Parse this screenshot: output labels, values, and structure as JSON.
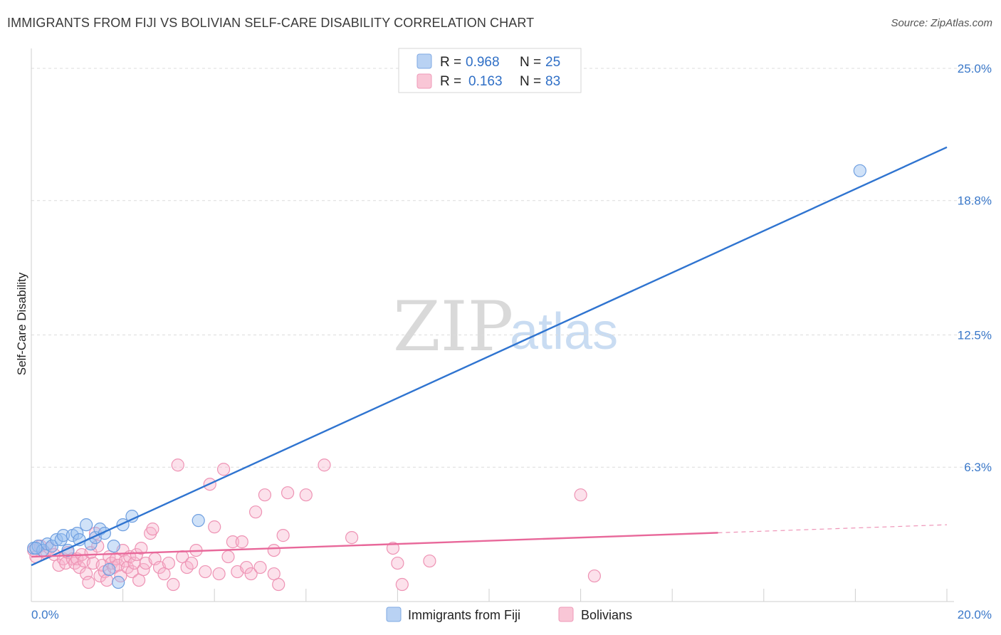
{
  "title": "IMMIGRANTS FROM FIJI VS BOLIVIAN SELF-CARE DISABILITY CORRELATION CHART",
  "source": "Source: ZipAtlas.com",
  "watermark": {
    "zip": "ZIP",
    "atlas": "atlas"
  },
  "colors": {
    "blue": "#6fa3e6",
    "blue_line": "#2f74d0",
    "pink": "#f08fb0",
    "pink_line": "#e8689a",
    "tick": "#3a78c9"
  },
  "legend": {
    "r_label": "R =",
    "n_label": "N =",
    "rows": [
      {
        "r": "0.968",
        "n": "25",
        "series": "fiji"
      },
      {
        "r": "0.163",
        "n": "83",
        "series": "bolivians"
      }
    ]
  },
  "chart_data": {
    "type": "scatter",
    "title": "IMMIGRANTS FROM FIJI VS BOLIVIAN SELF-CARE DISABILITY CORRELATION CHART",
    "xlabel": "",
    "ylabel": "Self-Care Disability",
    "xlim": [
      0,
      20
    ],
    "ylim": [
      0,
      25.6
    ],
    "x_tick_labels": [
      "0.0%",
      "20.0%"
    ],
    "x_ticks": [
      0,
      20
    ],
    "y_tick_labels": [
      "6.3%",
      "12.5%",
      "18.8%",
      "25.0%"
    ],
    "y_ticks": [
      6.3,
      12.5,
      18.8,
      25.0
    ],
    "grid": true,
    "series": [
      {
        "name": "Immigrants from Fiji",
        "key": "fiji",
        "trend": {
          "x": [
            0,
            20
          ],
          "y": [
            1.7,
            21.3
          ],
          "dashed_from": null
        },
        "points": [
          [
            0.05,
            2.5
          ],
          [
            0.15,
            2.6
          ],
          [
            0.25,
            2.4
          ],
          [
            0.35,
            2.7
          ],
          [
            0.45,
            2.6
          ],
          [
            0.55,
            2.9
          ],
          [
            0.65,
            2.9
          ],
          [
            0.7,
            3.1
          ],
          [
            0.8,
            2.4
          ],
          [
            0.9,
            3.1
          ],
          [
            1.0,
            3.2
          ],
          [
            1.05,
            2.9
          ],
          [
            1.2,
            3.6
          ],
          [
            1.3,
            2.7
          ],
          [
            1.4,
            3.0
          ],
          [
            1.5,
            3.4
          ],
          [
            1.6,
            3.2
          ],
          [
            1.7,
            1.5
          ],
          [
            1.8,
            2.6
          ],
          [
            1.9,
            0.9
          ],
          [
            2.0,
            3.6
          ],
          [
            2.2,
            4.0
          ],
          [
            3.65,
            3.8
          ],
          [
            18.1,
            20.2
          ],
          [
            0.1,
            2.5
          ]
        ]
      },
      {
        "name": "Bolivians",
        "key": "bolivians",
        "trend": {
          "x": [
            0,
            20
          ],
          "y": [
            2.1,
            3.6
          ],
          "dashed_from": 15
        },
        "points": [
          [
            0.05,
            2.4
          ],
          [
            0.1,
            2.1
          ],
          [
            0.2,
            2.6
          ],
          [
            0.3,
            2.3
          ],
          [
            0.4,
            2.5
          ],
          [
            0.5,
            2.2
          ],
          [
            0.6,
            1.7
          ],
          [
            0.7,
            2.0
          ],
          [
            0.75,
            1.8
          ],
          [
            0.8,
            2.3
          ],
          [
            0.9,
            2.0
          ],
          [
            0.95,
            1.8
          ],
          [
            1.0,
            2.0
          ],
          [
            1.05,
            1.6
          ],
          [
            1.1,
            2.2
          ],
          [
            1.15,
            1.9
          ],
          [
            1.2,
            1.3
          ],
          [
            1.25,
            0.9
          ],
          [
            1.3,
            2.3
          ],
          [
            1.35,
            1.8
          ],
          [
            1.4,
            3.2
          ],
          [
            1.45,
            2.6
          ],
          [
            1.5,
            1.2
          ],
          [
            1.55,
            1.7
          ],
          [
            1.6,
            1.4
          ],
          [
            1.65,
            1.0
          ],
          [
            1.7,
            2.1
          ],
          [
            1.75,
            1.8
          ],
          [
            1.8,
            1.6
          ],
          [
            1.85,
            2.0
          ],
          [
            1.9,
            1.7
          ],
          [
            1.95,
            1.2
          ],
          [
            2.0,
            2.4
          ],
          [
            2.05,
            1.9
          ],
          [
            2.1,
            1.6
          ],
          [
            2.15,
            2.1
          ],
          [
            2.2,
            1.4
          ],
          [
            2.25,
            1.8
          ],
          [
            2.3,
            2.2
          ],
          [
            2.35,
            1.0
          ],
          [
            2.4,
            2.5
          ],
          [
            2.45,
            1.5
          ],
          [
            2.5,
            1.8
          ],
          [
            2.6,
            3.2
          ],
          [
            2.65,
            3.4
          ],
          [
            2.7,
            2.0
          ],
          [
            2.8,
            1.6
          ],
          [
            2.9,
            1.3
          ],
          [
            3.0,
            1.8
          ],
          [
            3.1,
            0.8
          ],
          [
            3.2,
            6.4
          ],
          [
            3.3,
            2.1
          ],
          [
            3.4,
            1.6
          ],
          [
            3.5,
            1.8
          ],
          [
            3.6,
            2.4
          ],
          [
            3.8,
            1.4
          ],
          [
            3.9,
            5.5
          ],
          [
            4.0,
            3.5
          ],
          [
            4.1,
            1.3
          ],
          [
            4.2,
            6.2
          ],
          [
            4.3,
            2.1
          ],
          [
            4.4,
            2.8
          ],
          [
            4.5,
            1.4
          ],
          [
            4.6,
            2.8
          ],
          [
            4.7,
            1.6
          ],
          [
            4.8,
            1.3
          ],
          [
            4.9,
            4.2
          ],
          [
            5.0,
            1.6
          ],
          [
            5.1,
            5.0
          ],
          [
            5.3,
            2.4
          ],
          [
            5.4,
            0.8
          ],
          [
            5.5,
            3.1
          ],
          [
            5.6,
            5.1
          ],
          [
            6.0,
            5.0
          ],
          [
            6.4,
            6.4
          ],
          [
            7.0,
            3.0
          ],
          [
            8.0,
            1.8
          ],
          [
            8.1,
            0.8
          ],
          [
            8.7,
            1.9
          ],
          [
            7.9,
            2.5
          ],
          [
            12.0,
            5.0
          ],
          [
            12.3,
            1.2
          ],
          [
            5.3,
            1.3
          ]
        ]
      }
    ]
  }
}
